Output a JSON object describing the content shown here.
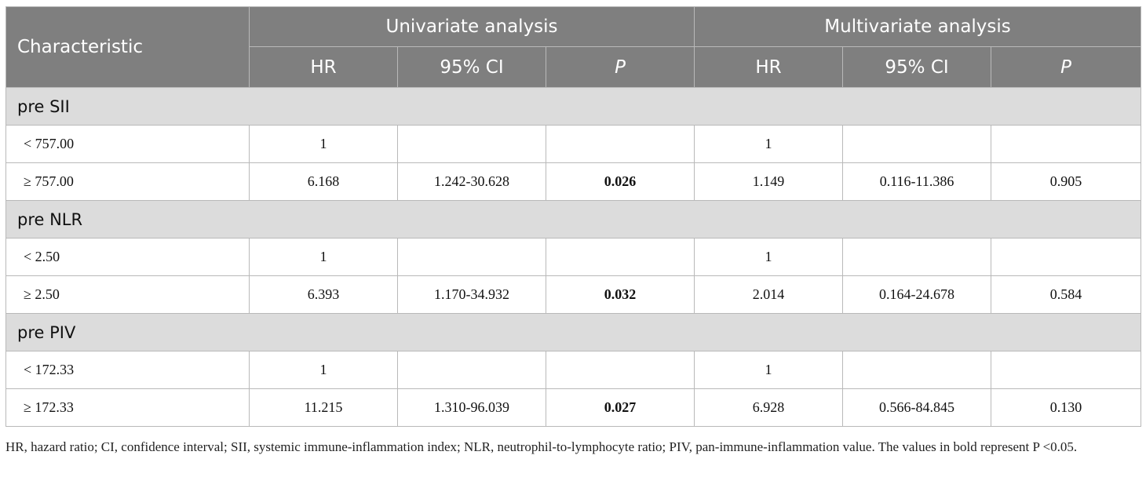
{
  "header": {
    "characteristic": "Characteristic",
    "univariate": "Univariate analysis",
    "multivariate": "Multivariate analysis",
    "hr": "HR",
    "ci": "95% CI",
    "p": "P"
  },
  "groups": [
    {
      "label": "pre SII",
      "rows": [
        {
          "label": "< 757.00",
          "u_hr": "1",
          "u_ci": "",
          "u_p": "",
          "m_hr": "1",
          "m_ci": "",
          "m_p": ""
        },
        {
          "label": "≥ 757.00",
          "u_hr": "6.168",
          "u_ci": "1.242-30.628",
          "u_p": "0.026",
          "m_hr": "1.149",
          "m_ci": "0.116-11.386",
          "m_p": "0.905"
        }
      ]
    },
    {
      "label": "pre NLR",
      "rows": [
        {
          "label": "< 2.50",
          "u_hr": "1",
          "u_ci": "",
          "u_p": "",
          "m_hr": "1",
          "m_ci": "",
          "m_p": ""
        },
        {
          "label": "≥ 2.50",
          "u_hr": "6.393",
          "u_ci": "1.170-34.932",
          "u_p": "0.032",
          "m_hr": "2.014",
          "m_ci": "0.164-24.678",
          "m_p": "0.584"
        }
      ]
    },
    {
      "label": "pre PIV",
      "rows": [
        {
          "label": "< 172.33",
          "u_hr": "1",
          "u_ci": "",
          "u_p": "",
          "m_hr": "1",
          "m_ci": "",
          "m_p": ""
        },
        {
          "label": "≥ 172.33",
          "u_hr": "11.215",
          "u_ci": "1.310-96.039",
          "u_p": "0.027",
          "m_hr": "6.928",
          "m_ci": "0.566-84.845",
          "m_p": "0.130"
        }
      ]
    }
  ],
  "footnote": "HR, hazard ratio; CI, confidence interval; SII, systemic immune-inflammation index; NLR, neutrophil-to-lymphocyte ratio; PIV, pan-immune-inflammation value. The values in bold represent P <0.05."
}
